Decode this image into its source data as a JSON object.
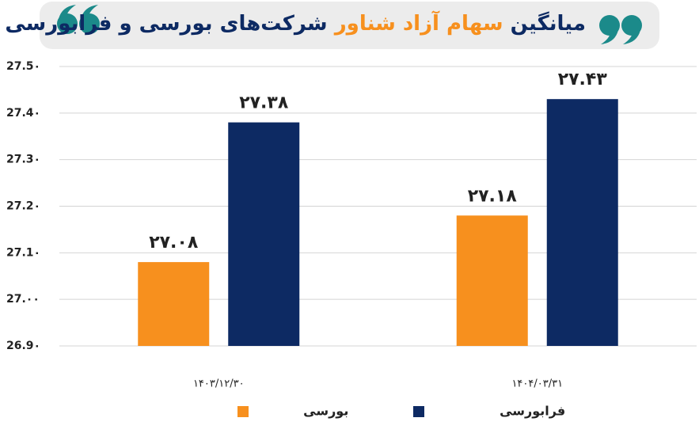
{
  "chart_data": {
    "type": "bar",
    "title": [
      "میانگین",
      "سهام آزاد شناور",
      "شرکت‌های بورسی و فرابورسی"
    ],
    "categories": [
      "۱۴۰۳/۱۲/۳۰",
      "۱۴۰۴/۰۳/۳۱"
    ],
    "series": [
      {
        "name": "بورسی",
        "color": "#f7901e",
        "values": [
          27.08,
          27.18
        ],
        "value_labels": [
          "۲۷.۰۸",
          "۲۷.۱۸"
        ]
      },
      {
        "name": "فرابورسی",
        "color": "#0d2a63",
        "values": [
          27.38,
          27.43
        ],
        "value_labels": [
          "۲۷.۳۸",
          "۲۷.۴۳"
        ]
      }
    ],
    "ylim": [
      26.9,
      27.5
    ],
    "yticks": [
      {
        "value": 26.9,
        "label": "26.9۰"
      },
      {
        "value": 27.0,
        "label": "27.۰۰"
      },
      {
        "value": 27.1,
        "label": "27.1۰"
      },
      {
        "value": 27.2,
        "label": "27.2۰"
      },
      {
        "value": 27.3,
        "label": "27.3۰"
      },
      {
        "value": 27.4,
        "label": "27.4۰"
      },
      {
        "value": 27.5,
        "label": "27.5۰"
      }
    ],
    "grid": true
  }
}
